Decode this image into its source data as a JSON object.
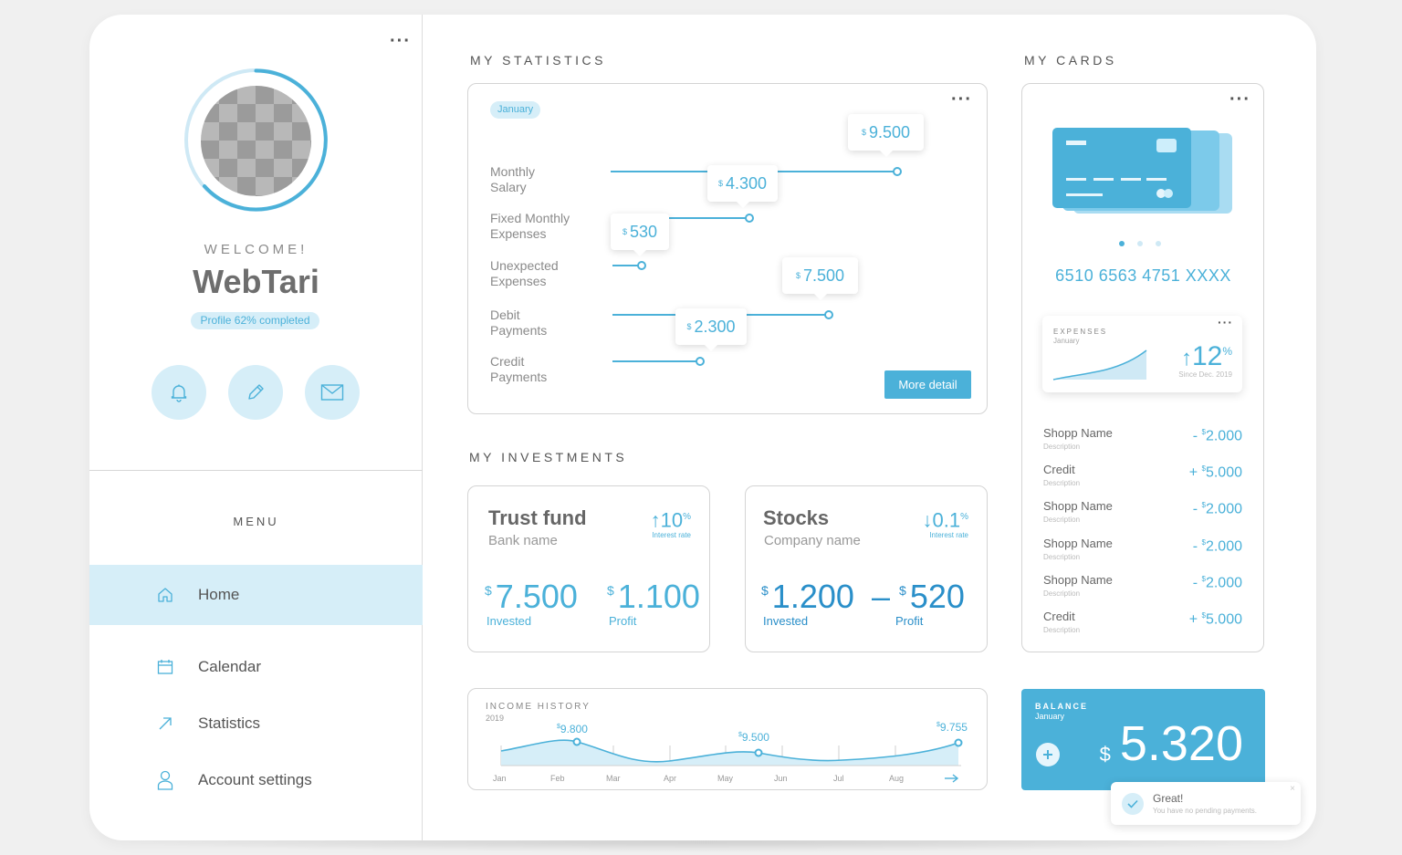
{
  "sidebar": {
    "welcome": "WELCOME!",
    "username": "WebTari",
    "profile_badge": "Profile 62% completed",
    "profile_completion": 62,
    "menu_title": "MENU",
    "menu": [
      {
        "label": "Home",
        "icon": "home-icon",
        "active": true
      },
      {
        "label": "Calendar",
        "icon": "calendar-icon",
        "active": false
      },
      {
        "label": "Statistics",
        "icon": "arrow-up-right-icon",
        "active": false
      },
      {
        "label": "Account settings",
        "icon": "user-icon",
        "active": false
      }
    ]
  },
  "statistics": {
    "title": "MY STATISTICS",
    "month_chip": "January",
    "currency": "$",
    "rows": [
      {
        "label_1": "Monthly",
        "label_2": "Salary",
        "value": "9.500"
      },
      {
        "label_1": "Fixed Monthly",
        "label_2": "Expenses",
        "value": "4.300"
      },
      {
        "label_1": "Unexpected",
        "label_2": "Expenses",
        "value": "530"
      },
      {
        "label_1": "Debit",
        "label_2": "Payments",
        "value": "7.500"
      },
      {
        "label_1": "Credit",
        "label_2": "Payments",
        "value": "2.300"
      }
    ],
    "more_button": "More detail"
  },
  "investments": {
    "title": "MY INVESTMENTS",
    "items": [
      {
        "name": "Trust fund",
        "sub": "Bank name",
        "rate_value": "10",
        "rate_direction": "up",
        "rate_label": "Interest rate",
        "currency": "$",
        "invested": "7.500",
        "invested_label": "Invested",
        "profit_prefix": "",
        "profit": "1.100",
        "profit_label": "Profit"
      },
      {
        "name": "Stocks",
        "sub": "Company name",
        "rate_value": "0.1",
        "rate_direction": "down",
        "rate_label": "Interest rate",
        "currency": "$",
        "invested": "1.200",
        "invested_label": "Invested",
        "profit_prefix": "–",
        "profit": "520",
        "profit_label": "Profit"
      }
    ]
  },
  "income": {
    "title": "INCOME HISTORY",
    "year": "2019",
    "months": [
      "Jan",
      "Feb",
      "Mar",
      "Apr",
      "May",
      "Jun",
      "Jul",
      "Aug"
    ],
    "labels": [
      {
        "month": "Feb",
        "value": "9.800"
      },
      {
        "month": "May",
        "value": "9.500"
      },
      {
        "month": "Aug",
        "value": "9.755"
      }
    ]
  },
  "cards": {
    "title": "MY CARDS",
    "card_number": "6510 6563 4751 XXXX",
    "carousel_active_index": 0,
    "expenses": {
      "title": "EXPENSES",
      "month": "January",
      "value": "12",
      "unit": "%",
      "since": "Since Dec. 2019"
    },
    "transactions": [
      {
        "name": "Shopp Name",
        "desc": "Description",
        "sign": "-",
        "currency": "$",
        "amount": "2.000"
      },
      {
        "name": "Credit",
        "desc": "Description",
        "sign": "+",
        "currency": "$",
        "amount": "5.000"
      },
      {
        "name": "Shopp Name",
        "desc": "Description",
        "sign": "-",
        "currency": "$",
        "amount": "2.000"
      },
      {
        "name": "Shopp Name",
        "desc": "Description",
        "sign": "-",
        "currency": "$",
        "amount": "2.000"
      },
      {
        "name": "Shopp Name",
        "desc": "Description",
        "sign": "-",
        "currency": "$",
        "amount": "2.000"
      },
      {
        "name": "Credit",
        "desc": "Description",
        "sign": "+",
        "currency": "$",
        "amount": "5.000"
      }
    ]
  },
  "balance": {
    "title": "BALANCE",
    "month": "January",
    "currency": "$",
    "value": "5.320"
  },
  "toast": {
    "title": "Great!",
    "message": "You have no pending payments."
  },
  "colors": {
    "accent": "#4bb1d9",
    "accent_light": "#d6eef8",
    "accent_dark": "#2a8fc9",
    "text": "#7a7a7a"
  }
}
